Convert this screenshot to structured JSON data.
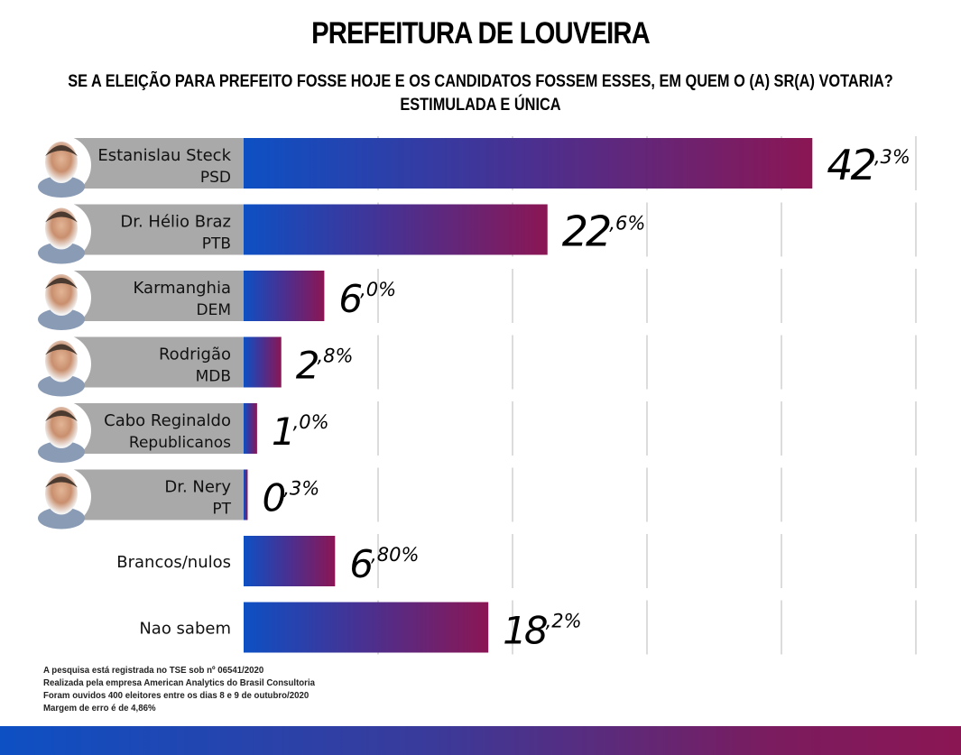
{
  "header": {
    "title": "PREFEITURA DE LOUVEIRA",
    "subtitle_line1": "SE A ELEIÇÃO PARA PREFEITO FOSSE HOJE E OS CANDIDATOS FOSSEM ESSES, EM QUEM O (A) SR(A) VOTARIA?",
    "subtitle_line2": "ESTIMULADA E ÚNICA"
  },
  "colors": {
    "bar_start": "#0d50c4",
    "bar_end": "#8b1654",
    "label_panel": "#a9a9a9",
    "gridline": "#d0d0d0"
  },
  "chart_data": {
    "type": "bar",
    "orientation": "horizontal",
    "title": "PREFEITURA DE LOUVEIRA",
    "subtitle": "SE A ELEIÇÃO PARA PREFEITO FOSSE HOJE E OS CANDIDATOS FOSSEM ESSES, EM QUEM O (A) SR(A) VOTARIA? ESTIMULADA E ÚNICA",
    "xlabel": "",
    "ylabel": "",
    "xlim": [
      0,
      50
    ],
    "grid": true,
    "grid_step": 10,
    "categories": [
      {
        "name": "Estanislau Steck",
        "party": "PSD",
        "has_photo": true
      },
      {
        "name": "Dr. Hélio Braz",
        "party": "PTB",
        "has_photo": true
      },
      {
        "name": "Karmanghia",
        "party": "DEM",
        "has_photo": true
      },
      {
        "name": "Rodrigão",
        "party": "MDB",
        "has_photo": true
      },
      {
        "name": "Cabo Reginaldo",
        "party": "Republicanos",
        "has_photo": true
      },
      {
        "name": "Dr. Nery",
        "party": "PT",
        "has_photo": true
      },
      {
        "name": "Brancos/nulos",
        "party": "",
        "has_photo": false
      },
      {
        "name": "Nao sabem",
        "party": "",
        "has_photo": false
      }
    ],
    "values": [
      42.3,
      22.6,
      6.0,
      2.8,
      1.0,
      0.3,
      6.8,
      18.2
    ],
    "value_labels": [
      {
        "int": "42",
        "dec": ",3%"
      },
      {
        "int": "22",
        "dec": ",6%"
      },
      {
        "int": "6",
        "dec": ",0%"
      },
      {
        "int": "2",
        "dec": ",8%"
      },
      {
        "int": "1",
        "dec": ",0%"
      },
      {
        "int": "0",
        "dec": ",3%"
      },
      {
        "int": "6",
        "dec": ",80%"
      },
      {
        "int": "18",
        "dec": ",2%"
      }
    ]
  },
  "footer": {
    "lines": [
      "A pesquisa está registrada no TSE sob nº 06541/2020",
      "Realizada pela empresa American Analytics do Brasil Consultoria",
      "Foram ouvidos 400 eleitores entre os dias  8 e 9 de outubro/2020",
      "Margem de erro é de 4,86%"
    ]
  }
}
